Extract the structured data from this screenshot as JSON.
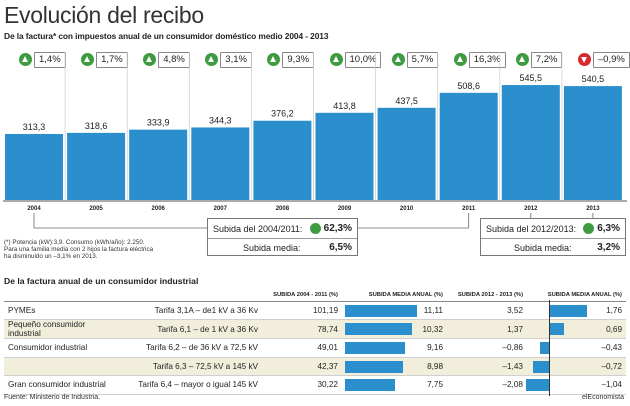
{
  "title": "Evolución del recibo",
  "subtitle": "De la factura* con impuestos anual de un consumidor doméstico medio 2004 - 2013",
  "colors": {
    "bar": "#2a8fcc",
    "up_icon": "#3f9b3f",
    "down_icon": "#d8282e",
    "shade": "#f1efdc"
  },
  "chart_data": {
    "type": "bar",
    "categories": [
      "2004",
      "2005",
      "2006",
      "2007",
      "2008",
      "2009",
      "2010",
      "2011",
      "2012",
      "2013"
    ],
    "values": [
      313.3,
      318.6,
      333.9,
      344.3,
      376.2,
      413.8,
      437.5,
      508.6,
      545.5,
      540.5
    ],
    "value_labels": [
      "313,3",
      "318,6",
      "333,9",
      "344,3",
      "376,2",
      "413,8",
      "437,5",
      "508,6",
      "545,5",
      "540,5"
    ],
    "changes": [
      {
        "label": "1,4%",
        "dir": "up"
      },
      {
        "label": "1,7%",
        "dir": "up"
      },
      {
        "label": "4,8%",
        "dir": "up"
      },
      {
        "label": "3,1%",
        "dir": "up"
      },
      {
        "label": "9,3%",
        "dir": "up"
      },
      {
        "label": "10,0%",
        "dir": "up"
      },
      {
        "label": "5,7%",
        "dir": "up"
      },
      {
        "label": "16,3%",
        "dir": "up"
      },
      {
        "label": "7,2%",
        "dir": "up"
      },
      {
        "label": "–0,9%",
        "dir": "down"
      }
    ],
    "title": "Evolución del recibo",
    "xlabel": "",
    "ylabel": "",
    "ylim": [
      0,
      560
    ]
  },
  "footnote": {
    "line1": "(*) Potencia (kW):3,9. Consumo (kWh/año): 2.250.",
    "line2": "Para una familia media con 2 hijos la factura eléctrica",
    "line3": "ha disminuido un –3,1% en 2013."
  },
  "box1": {
    "label1": "Subida del 2004/2011:",
    "value1": "62,3%",
    "label2": "Subida media:",
    "value2": "6,5%"
  },
  "box2": {
    "label1": "Subida del 2012/2013:",
    "value1": "6,3%",
    "label2": "Subida media:",
    "value2": "3,2%"
  },
  "table_title": "De la factura anual de un consumidor industrial",
  "table": {
    "headers": [
      "SUBIDA 2004 - 2011 (%)",
      "SUBIDA MEDIA ANUAL (%)",
      "SUBIDA 2012 - 2013 (%)",
      "SUBIDA MEDIA ANUAL (%)"
    ],
    "rows": [
      {
        "group": "PYMEs",
        "tarifa": "Tarifa 3,1A – de1 kV a 36 Kv",
        "s1": "101,19",
        "m1": "11,11",
        "m1v": 11.11,
        "s2": "3,52",
        "m2": "1,76",
        "m2v": 1.76
      },
      {
        "group": "Pequeño consumidor industrial",
        "tarifa": "Tarifa 6,1 – de 1 kV a 36 Kv",
        "s1": "78,74",
        "m1": "10,32",
        "m1v": 10.32,
        "s2": "1,37",
        "m2": "0,69",
        "m2v": 0.69
      },
      {
        "group": "Consumidor industrial",
        "tarifa": "Tarifa 6,2 – de 36 kV a 72,5 kV",
        "s1": "49,01",
        "m1": "9,16",
        "m1v": 9.16,
        "s2": "–0,86",
        "m2": "–0,43",
        "m2v": -0.43
      },
      {
        "group": "",
        "tarifa": "Tarifa 6,3 – 72,5 kV a 145 kV",
        "s1": "42,37",
        "m1": "8,98",
        "m1v": 8.98,
        "s2": "–1,43",
        "m2": "–0,72",
        "m2v": -0.72
      },
      {
        "group": "Gran consumidor industrial",
        "tarifa": "Tarifa 6,4 – mayor o igual 145 kV",
        "s1": "30,22",
        "m1": "7,75",
        "m1v": 7.75,
        "s2": "–2,08",
        "m2": "–1,04",
        "m2v": -1.04
      }
    ]
  },
  "source": "Fuente: Ministerio de Industria.",
  "brand": "elEconomista"
}
